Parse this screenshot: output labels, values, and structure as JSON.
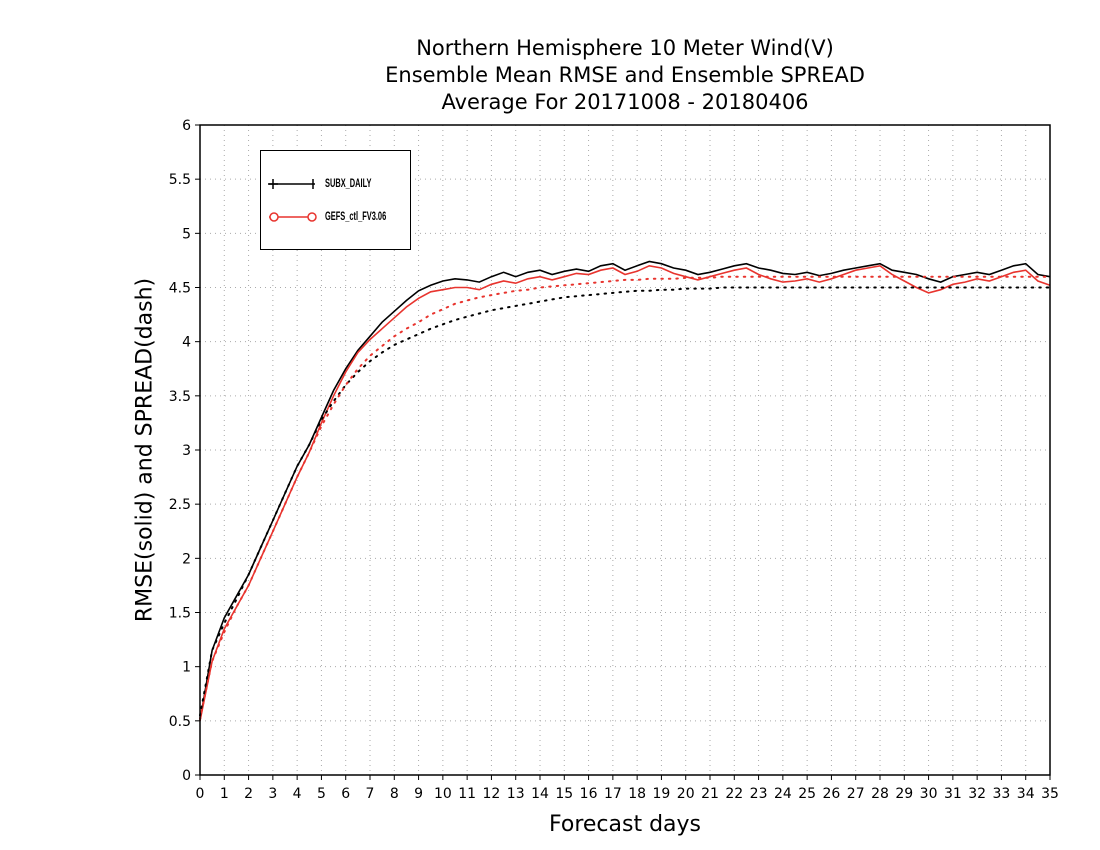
{
  "titles": [
    "Northern Hemisphere 10 Meter Wind(V)",
    "Ensemble Mean RMSE and Ensemble SPREAD",
    "Average For 20171008 - 20180406"
  ],
  "axes": {
    "xlabel": "Forecast days",
    "ylabel": "RMSE(solid) and SPREAD(dash)"
  },
  "legend": {
    "items": [
      {
        "label": "SUBX_DAILY",
        "color": "#000000",
        "marker": "plus"
      },
      {
        "label": "GEFS_ctl_FV3.06",
        "color": "#e8342e",
        "marker": "circle"
      }
    ]
  },
  "chart_data": {
    "type": "line",
    "xlim": [
      0,
      35
    ],
    "ylim": [
      0,
      6
    ],
    "xticks": [
      0,
      1,
      2,
      3,
      4,
      5,
      6,
      7,
      8,
      9,
      10,
      11,
      12,
      13,
      14,
      15,
      16,
      17,
      18,
      19,
      20,
      21,
      22,
      23,
      24,
      25,
      26,
      27,
      28,
      29,
      30,
      31,
      32,
      33,
      34,
      35
    ],
    "yticks": [
      0,
      0.5,
      1,
      1.5,
      2,
      2.5,
      3,
      3.5,
      4,
      4.5,
      5,
      5.5,
      6
    ],
    "grid": true,
    "legend_position": "top-left",
    "series": [
      {
        "name": "SUBX_DAILY",
        "style": "solid",
        "color": "#000000",
        "x": [
          0,
          0.5,
          1,
          1.5,
          2,
          2.5,
          3,
          3.5,
          4,
          4.5,
          5,
          5.5,
          6,
          6.5,
          7,
          7.5,
          8,
          8.5,
          9,
          9.5,
          10,
          10.5,
          11,
          11.5,
          12,
          12.5,
          13,
          13.5,
          14,
          14.5,
          15,
          15.5,
          16,
          16.5,
          17,
          17.5,
          18,
          18.5,
          19,
          19.5,
          20,
          20.5,
          21,
          21.5,
          22,
          22.5,
          23,
          23.5,
          24,
          24.5,
          25,
          25.5,
          26,
          26.5,
          27,
          27.5,
          28,
          28.5,
          29,
          29.5,
          30,
          30.5,
          31,
          31.5,
          32,
          32.5,
          33,
          33.5,
          34,
          34.5,
          35
        ],
        "y": [
          0.5,
          1.15,
          1.45,
          1.65,
          1.85,
          2.1,
          2.35,
          2.6,
          2.85,
          3.05,
          3.3,
          3.55,
          3.75,
          3.92,
          4.05,
          4.18,
          4.28,
          4.38,
          4.47,
          4.52,
          4.56,
          4.58,
          4.57,
          4.55,
          4.6,
          4.64,
          4.6,
          4.64,
          4.66,
          4.62,
          4.65,
          4.67,
          4.65,
          4.7,
          4.72,
          4.66,
          4.7,
          4.74,
          4.72,
          4.68,
          4.66,
          4.62,
          4.64,
          4.67,
          4.7,
          4.72,
          4.68,
          4.66,
          4.63,
          4.62,
          4.64,
          4.61,
          4.63,
          4.66,
          4.68,
          4.7,
          4.72,
          4.66,
          4.64,
          4.62,
          4.58,
          4.55,
          4.6,
          4.62,
          4.64,
          4.62,
          4.66,
          4.7,
          4.72,
          4.62,
          4.6
        ]
      },
      {
        "name": "GEFS_ctl_FV3.06",
        "style": "solid",
        "color": "#e8342e",
        "x": [
          0,
          0.5,
          1,
          1.5,
          2,
          2.5,
          3,
          3.5,
          4,
          4.5,
          5,
          5.5,
          6,
          6.5,
          7,
          7.5,
          8,
          8.5,
          9,
          9.5,
          10,
          10.5,
          11,
          11.5,
          12,
          12.5,
          13,
          13.5,
          14,
          14.5,
          15,
          15.5,
          16,
          16.5,
          17,
          17.5,
          18,
          18.5,
          19,
          19.5,
          20,
          20.5,
          21,
          21.5,
          22,
          22.5,
          23,
          23.5,
          24,
          24.5,
          25,
          25.5,
          26,
          26.5,
          27,
          27.5,
          28,
          28.5,
          29,
          29.5,
          30,
          30.5,
          31,
          31.5,
          32,
          32.5,
          33,
          33.5,
          34,
          34.5,
          35
        ],
        "y": [
          0.5,
          1.05,
          1.35,
          1.55,
          1.75,
          2.0,
          2.25,
          2.5,
          2.75,
          2.98,
          3.25,
          3.5,
          3.72,
          3.9,
          4.02,
          4.12,
          4.22,
          4.32,
          4.4,
          4.46,
          4.48,
          4.5,
          4.5,
          4.48,
          4.53,
          4.56,
          4.54,
          4.58,
          4.6,
          4.57,
          4.6,
          4.63,
          4.62,
          4.66,
          4.68,
          4.62,
          4.65,
          4.7,
          4.68,
          4.63,
          4.6,
          4.57,
          4.6,
          4.63,
          4.66,
          4.68,
          4.62,
          4.58,
          4.55,
          4.56,
          4.58,
          4.55,
          4.58,
          4.62,
          4.66,
          4.68,
          4.7,
          4.62,
          4.56,
          4.5,
          4.45,
          4.48,
          4.53,
          4.55,
          4.58,
          4.56,
          4.6,
          4.64,
          4.66,
          4.56,
          4.52
        ]
      },
      {
        "name": "SUBX_DAILY",
        "style": "dash",
        "color": "#000000",
        "x": [
          0,
          0.5,
          1,
          1.5,
          2,
          2.5,
          3,
          3.5,
          4,
          4.5,
          5,
          5.5,
          6,
          6.5,
          7,
          7.5,
          8,
          8.5,
          9,
          9.5,
          10,
          10.5,
          11,
          11.5,
          12,
          12.5,
          13,
          13.5,
          14,
          14.5,
          15,
          15.5,
          16,
          16.5,
          17,
          17.5,
          18,
          18.5,
          19,
          19.5,
          20,
          20.5,
          21,
          21.5,
          22,
          22.5,
          23,
          23.5,
          24,
          24.5,
          25,
          25.5,
          26,
          26.5,
          27,
          27.5,
          28,
          28.5,
          29,
          29.5,
          30,
          30.5,
          31,
          31.5,
          32,
          32.5,
          33,
          33.5,
          34,
          34.5,
          35
        ],
        "y": [
          0.55,
          1.15,
          1.4,
          1.62,
          1.85,
          2.1,
          2.35,
          2.6,
          2.85,
          3.05,
          3.28,
          3.45,
          3.6,
          3.72,
          3.82,
          3.9,
          3.97,
          4.02,
          4.07,
          4.12,
          4.16,
          4.2,
          4.23,
          4.26,
          4.29,
          4.31,
          4.33,
          4.35,
          4.37,
          4.39,
          4.41,
          4.42,
          4.43,
          4.44,
          4.45,
          4.46,
          4.47,
          4.47,
          4.48,
          4.48,
          4.49,
          4.49,
          4.49,
          4.5,
          4.5,
          4.5,
          4.5,
          4.5,
          4.5,
          4.5,
          4.5,
          4.5,
          4.5,
          4.5,
          4.5,
          4.5,
          4.5,
          4.5,
          4.5,
          4.5,
          4.5,
          4.5,
          4.5,
          4.5,
          4.5,
          4.5,
          4.5,
          4.5,
          4.5,
          4.5,
          4.5
        ]
      },
      {
        "name": "GEFS_ctl_FV3.06",
        "style": "dash",
        "color": "#e8342e",
        "x": [
          0,
          0.5,
          1,
          1.5,
          2,
          2.5,
          3,
          3.5,
          4,
          4.5,
          5,
          5.5,
          6,
          6.5,
          7,
          7.5,
          8,
          8.5,
          9,
          9.5,
          10,
          10.5,
          11,
          11.5,
          12,
          12.5,
          13,
          13.5,
          14,
          14.5,
          15,
          15.5,
          16,
          16.5,
          17,
          17.5,
          18,
          18.5,
          19,
          19.5,
          20,
          20.5,
          21,
          21.5,
          22,
          22.5,
          23,
          23.5,
          24,
          24.5,
          25,
          25.5,
          26,
          26.5,
          27,
          27.5,
          28,
          28.5,
          29,
          29.5,
          30,
          30.5,
          31,
          31.5,
          32,
          32.5,
          33,
          33.5,
          34,
          34.5,
          35
        ],
        "y": [
          0.52,
          1.05,
          1.32,
          1.55,
          1.75,
          2.0,
          2.25,
          2.5,
          2.75,
          2.98,
          3.22,
          3.42,
          3.6,
          3.75,
          3.87,
          3.96,
          4.05,
          4.12,
          4.18,
          4.25,
          4.3,
          4.35,
          4.38,
          4.41,
          4.43,
          4.45,
          4.47,
          4.48,
          4.5,
          4.51,
          4.52,
          4.53,
          4.54,
          4.55,
          4.56,
          4.57,
          4.57,
          4.58,
          4.58,
          4.58,
          4.59,
          4.59,
          4.59,
          4.6,
          4.6,
          4.6,
          4.6,
          4.6,
          4.6,
          4.6,
          4.6,
          4.6,
          4.6,
          4.6,
          4.6,
          4.6,
          4.6,
          4.6,
          4.6,
          4.6,
          4.6,
          4.6,
          4.6,
          4.6,
          4.6,
          4.6,
          4.6,
          4.6,
          4.6,
          4.6,
          4.6
        ]
      }
    ]
  }
}
